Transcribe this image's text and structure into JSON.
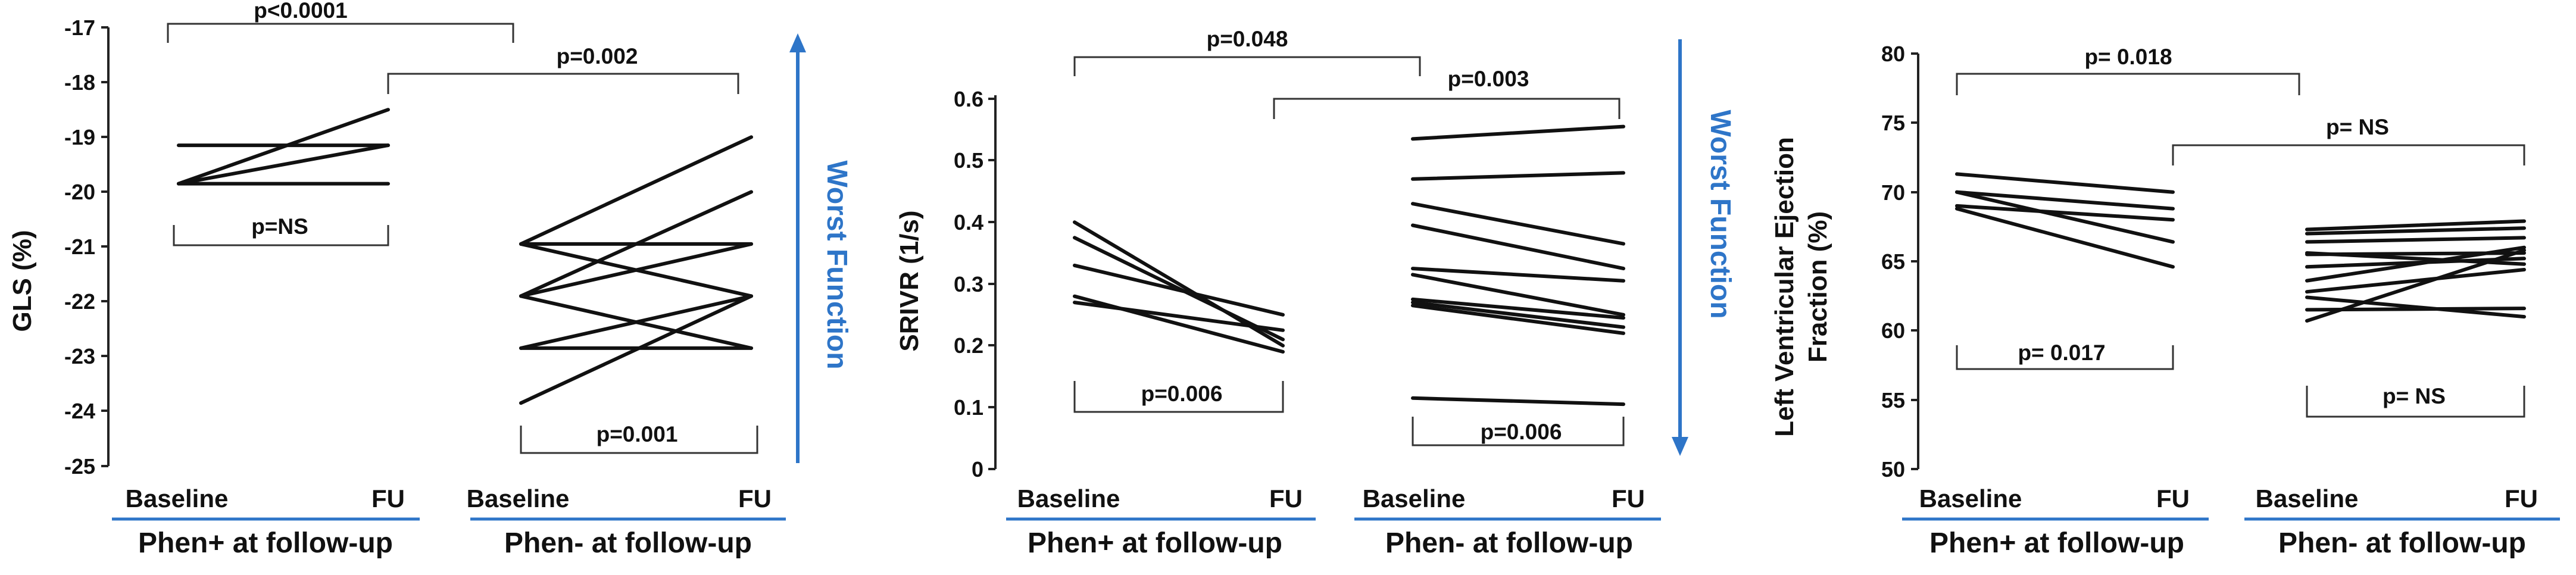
{
  "colors": {
    "line": "#111111",
    "accent": "#2e75c8",
    "axis": "#222222"
  },
  "chart_data": [
    {
      "type": "line",
      "ylabel": "GLS (%)",
      "ylim": [
        -25,
        -17
      ],
      "yticks": [
        -17,
        -18,
        -19,
        -20,
        -21,
        -22,
        -23,
        -24,
        -25
      ],
      "categories": [
        "Baseline",
        "FU",
        "Baseline",
        "FU"
      ],
      "groups": [
        "Phen+ at follow-up",
        "Phen- at follow-up"
      ],
      "group1": [
        [
          -19.85,
          -18.5
        ],
        [
          -19.15,
          -19.15
        ],
        [
          -19.85,
          -19.85
        ],
        [
          -19.85,
          -19.15
        ]
      ],
      "group2": [
        [
          -20.95,
          -19.0
        ],
        [
          -20.95,
          -21.9
        ],
        [
          -20.95,
          -20.95
        ],
        [
          -21.9,
          -20.0
        ],
        [
          -21.9,
          -20.95
        ],
        [
          -21.9,
          -22.85
        ],
        [
          -22.85,
          -21.9
        ],
        [
          -22.85,
          -22.85
        ],
        [
          -23.85,
          -21.9
        ]
      ],
      "pvalues": [
        "p<0.0001",
        "p=0.002",
        "p=NS",
        "p=0.001"
      ],
      "annotation": "Worst Function"
    },
    {
      "type": "line",
      "ylabel": "SRIVR (1/s)",
      "ylim": [
        0,
        0.6
      ],
      "yticks": [
        "0",
        "0.1",
        "0.2",
        "0.3",
        "0.4",
        "0.5",
        "0.6"
      ],
      "categories": [
        "Baseline",
        "FU",
        "Baseline",
        "FU"
      ],
      "groups": [
        "Phen+ at follow-up",
        "Phen- at follow-up"
      ],
      "group1": [
        [
          0.4,
          0.2
        ],
        [
          0.375,
          0.21
        ],
        [
          0.33,
          0.25
        ],
        [
          0.28,
          0.19
        ],
        [
          0.27,
          0.225
        ]
      ],
      "group2": [
        [
          0.535,
          0.555
        ],
        [
          0.47,
          0.48
        ],
        [
          0.43,
          0.365
        ],
        [
          0.395,
          0.325
        ],
        [
          0.325,
          0.305
        ],
        [
          0.315,
          0.25
        ],
        [
          0.275,
          0.245
        ],
        [
          0.27,
          0.23
        ],
        [
          0.265,
          0.22
        ],
        [
          0.115,
          0.105
        ]
      ],
      "pvalues": [
        "p=0.048",
        "p=0.003",
        "p=0.006",
        "p=0.006"
      ],
      "annotation": "Worst Function"
    },
    {
      "type": "line",
      "ylabel_line1": "Left Ventricular Ejection",
      "ylabel_line2": "Fraction (%)",
      "ylim": [
        50,
        80
      ],
      "yticks": [
        80,
        75,
        70,
        65,
        60,
        55,
        50
      ],
      "categories": [
        "Baseline",
        "FU",
        "Baseline",
        "FU"
      ],
      "groups": [
        "Phen+ at follow-up",
        "Phen- at follow-up"
      ],
      "group1": [
        [
          71.3,
          70.0
        ],
        [
          70.0,
          68.8
        ],
        [
          70.0,
          66.4
        ],
        [
          69.0,
          68.0
        ],
        [
          68.8,
          64.6
        ]
      ],
      "group2": [
        [
          67.3,
          67.9
        ],
        [
          67.0,
          67.4
        ],
        [
          66.4,
          66.7
        ],
        [
          65.6,
          64.8
        ],
        [
          65.5,
          65.6
        ],
        [
          64.6,
          65.2
        ],
        [
          63.6,
          66.0
        ],
        [
          62.8,
          64.4
        ],
        [
          62.4,
          61.0
        ],
        [
          61.5,
          61.6
        ],
        [
          60.7,
          65.8
        ]
      ],
      "pvalues": [
        "p= 0.018",
        "p= NS",
        "p= 0.017",
        "p= NS"
      ]
    }
  ]
}
